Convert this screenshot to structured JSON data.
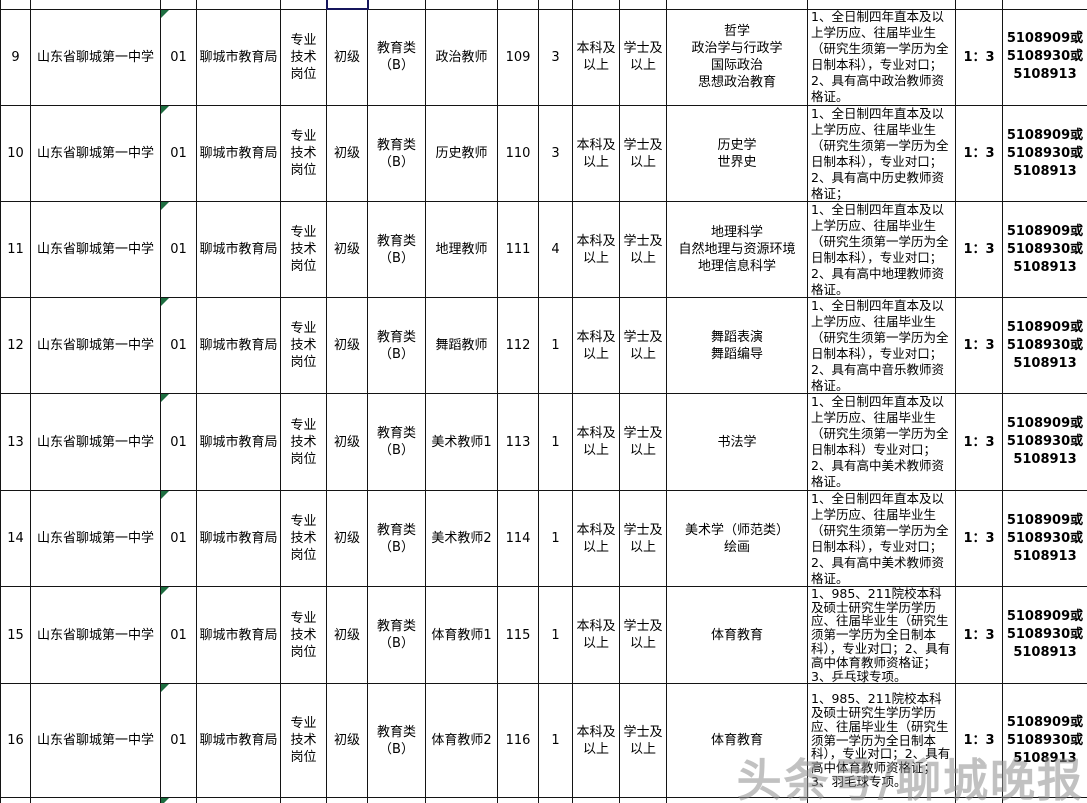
{
  "watermark": {
    "text": "头条号/聊城晚报"
  },
  "colors": {
    "bg": "#ffffff",
    "text": "#000000",
    "border": "#141414",
    "triangle": "#1e6e41",
    "selection": "#15155c",
    "watermark": "#8f8f8f"
  },
  "table": {
    "rows": [
      {
        "no": "9",
        "school": "山东省聊城第一中学",
        "org_code": "01",
        "bureau": "聊城市教育局",
        "post_type": [
          "专业",
          "技术",
          "岗位"
        ],
        "level": "初级",
        "category": [
          "教育类",
          "（B）"
        ],
        "position": "政治教师",
        "post_code": "109",
        "count": "3",
        "education": [
          "本科及",
          "以上"
        ],
        "degree": [
          "学士及",
          "以上"
        ],
        "majors": [
          "哲学",
          "政治学与行政学",
          "国际政治",
          "思想政治教育"
        ],
        "requirements": "1、全日制四年直本及以上学历应、往届毕业生（研究生须第一学历为全日制本科），专业对口；2、具有高中政治教师资格证。",
        "ratio": "1：3",
        "phones": [
          "5108909或",
          "5108930或",
          "5108913"
        ]
      },
      {
        "no": "10",
        "school": "山东省聊城第一中学",
        "org_code": "01",
        "bureau": "聊城市教育局",
        "post_type": [
          "专业",
          "技术",
          "岗位"
        ],
        "level": "初级",
        "category": [
          "教育类",
          "（B）"
        ],
        "position": "历史教师",
        "post_code": "110",
        "count": "3",
        "education": [
          "本科及",
          "以上"
        ],
        "degree": [
          "学士及",
          "以上"
        ],
        "majors": [
          "历史学",
          "世界史"
        ],
        "requirements": "1、全日制四年直本及以上学历应、往届毕业生（研究生须第一学历为全日制本科），专业对口；2、具有高中历史教师资格证；",
        "ratio": "1：3",
        "phones": [
          "5108909或",
          "5108930或",
          "5108913"
        ]
      },
      {
        "no": "11",
        "school": "山东省聊城第一中学",
        "org_code": "01",
        "bureau": "聊城市教育局",
        "post_type": [
          "专业",
          "技术",
          "岗位"
        ],
        "level": "初级",
        "category": [
          "教育类",
          "（B）"
        ],
        "position": "地理教师",
        "post_code": "111",
        "count": "4",
        "education": [
          "本科及",
          "以上"
        ],
        "degree": [
          "学士及",
          "以上"
        ],
        "majors": [
          "地理科学",
          "自然地理与资源环境",
          "地理信息科学"
        ],
        "requirements": "1、全日制四年直本及以上学历应、往届毕业生（研究生须第一学历为全日制本科），专业对口；2、具有高中地理教师资格证。",
        "ratio": "1：3",
        "phones": [
          "5108909或",
          "5108930或",
          "5108913"
        ]
      },
      {
        "no": "12",
        "school": "山东省聊城第一中学",
        "org_code": "01",
        "bureau": "聊城市教育局",
        "post_type": [
          "专业",
          "技术",
          "岗位"
        ],
        "level": "初级",
        "category": [
          "教育类",
          "（B）"
        ],
        "position": "舞蹈教师",
        "post_code": "112",
        "count": "1",
        "education": [
          "本科及",
          "以上"
        ],
        "degree": [
          "学士及",
          "以上"
        ],
        "majors": [
          "舞蹈表演",
          "舞蹈编导"
        ],
        "requirements": "1、全日制四年直本及以上学历应、往届毕业生（研究生须第一学历为全日制本科），专业对口；2、具有高中音乐教师资格证。",
        "ratio": "1：3",
        "phones": [
          "5108909或",
          "5108930或",
          "5108913"
        ]
      },
      {
        "no": "13",
        "school": "山东省聊城第一中学",
        "org_code": "01",
        "bureau": "聊城市教育局",
        "post_type": [
          "专业",
          "技术",
          "岗位"
        ],
        "level": "初级",
        "category": [
          "教育类",
          "（B）"
        ],
        "position": "美术教师1",
        "post_code": "113",
        "count": "1",
        "education": [
          "本科及",
          "以上"
        ],
        "degree": [
          "学士及",
          "以上"
        ],
        "majors": [
          "书法学"
        ],
        "requirements": "1、全日制四年直本及以上学历应、往届毕业生（研究生须第一学历为全日制本科）专业对口；2、具有高中美术教师资格证。",
        "ratio": "1：3",
        "phones": [
          "5108909或",
          "5108930或",
          "5108913"
        ]
      },
      {
        "no": "14",
        "school": "山东省聊城第一中学",
        "org_code": "01",
        "bureau": "聊城市教育局",
        "post_type": [
          "专业",
          "技术",
          "岗位"
        ],
        "level": "初级",
        "category": [
          "教育类",
          "（B）"
        ],
        "position": "美术教师2",
        "post_code": "114",
        "count": "1",
        "education": [
          "本科及",
          "以上"
        ],
        "degree": [
          "学士及",
          "以上"
        ],
        "majors": [
          "美术学（师范类）",
          "绘画"
        ],
        "requirements": "1、全日制四年直本及以上学历应、往届毕业生（研究生须第一学历为全日制本科），专业对口；2、具有高中美术教师资格证。",
        "ratio": "1：3",
        "phones": [
          "5108909或",
          "5108930或",
          "5108913"
        ]
      },
      {
        "no": "15",
        "school": "山东省聊城第一中学",
        "org_code": "01",
        "bureau": "聊城市教育局",
        "post_type": [
          "专业",
          "技术",
          "岗位"
        ],
        "level": "初级",
        "category": [
          "教育类",
          "（B）"
        ],
        "position": "体育教师1",
        "post_code": "115",
        "count": "1",
        "education": [
          "本科及",
          "以上"
        ],
        "degree": [
          "学士及",
          "以上"
        ],
        "majors": [
          "体育教育"
        ],
        "requirements": "1、985、211院校本科及硕士研究生学历学历应、往届毕业生（研究生须第一学历为全日制本科），专业对口；2、具有高中体育教师资格证；3、乒乓球专项。",
        "ratio": "1：3",
        "phones": [
          "5108909或",
          "5108930或",
          "5108913"
        ]
      },
      {
        "no": "16",
        "school": "山东省聊城第一中学",
        "org_code": "01",
        "bureau": "聊城市教育局",
        "post_type": [
          "专业",
          "技术",
          "岗位"
        ],
        "level": "初级",
        "category": [
          "教育类",
          "（B）"
        ],
        "position": "体育教师2",
        "post_code": "116",
        "count": "1",
        "education": [
          "本科及",
          "以上"
        ],
        "degree": [
          "学士及",
          "以上"
        ],
        "majors": [
          "体育教育"
        ],
        "requirements": "1、985、211院校本科及硕士研究生学历学历应、往届毕业生（研究生须第一学历为全日制本科），专业对口；2、具有高中体育教师资格证；3、羽毛球专项。",
        "ratio": "1：3",
        "phones": [
          "5108909或",
          "5108930或",
          "5108913"
        ]
      }
    ]
  }
}
